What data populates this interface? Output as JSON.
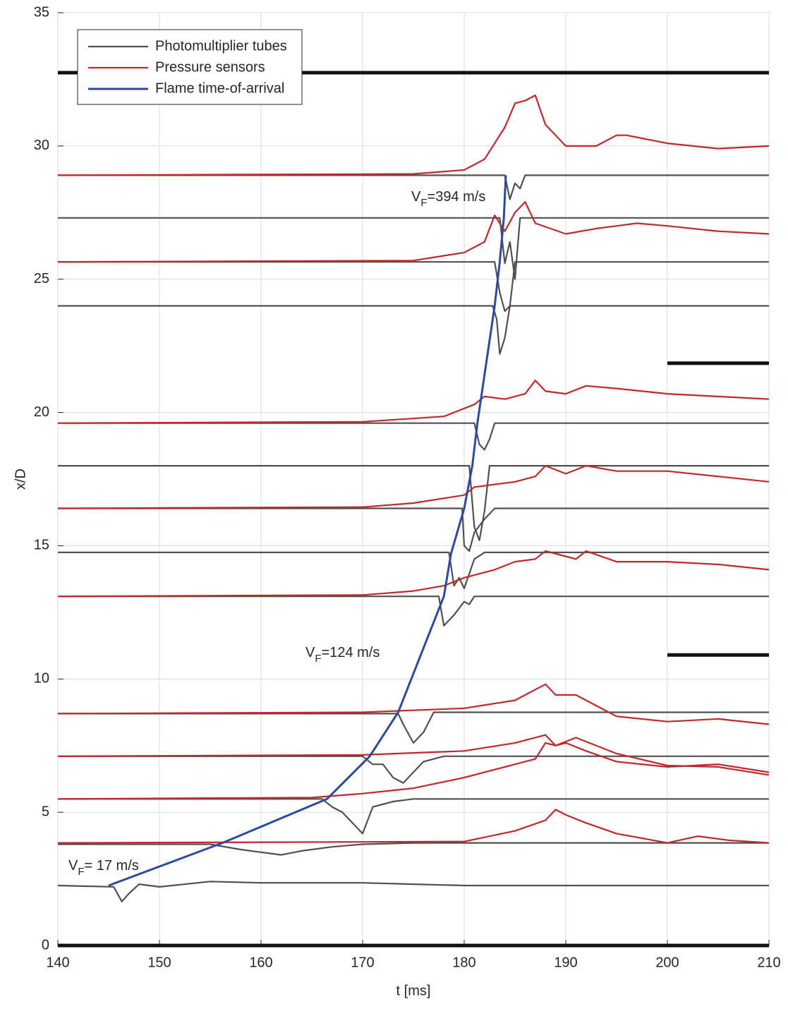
{
  "chart_data": {
    "type": "line",
    "xlabel": "t [ms]",
    "ylabel": "x/D",
    "xlim": [
      140,
      210
    ],
    "xticks": [
      140,
      150,
      160,
      170,
      180,
      190,
      200,
      210
    ],
    "ylim": [
      0,
      35
    ],
    "yticks": [
      0,
      5,
      10,
      15,
      20,
      25,
      30,
      35
    ],
    "grid": true,
    "legend": "upper left",
    "series": [
      {
        "name": "Photomultiplier tubes",
        "color": "#505050",
        "lines": [
          {
            "x": [
              140,
              145.5,
              146.3,
              147,
              148,
              150,
              155,
              160,
              170,
              175,
              180,
              210
            ],
            "values": [
              2.25,
              2.2,
              1.65,
              1.95,
              2.3,
              2.2,
              2.4,
              2.35,
              2.35,
              2.3,
              2.25,
              2.25
            ]
          },
          {
            "x": [
              140,
              155,
              158,
              160,
              162,
              164,
              167,
              170,
              175,
              210
            ],
            "values": [
              3.8,
              3.8,
              3.6,
              3.5,
              3.4,
              3.55,
              3.7,
              3.8,
              3.85,
              3.85
            ]
          },
          {
            "x": [
              140,
              166,
              167,
              168,
              169,
              170,
              171,
              173,
              175,
              210
            ],
            "values": [
              5.5,
              5.5,
              5.2,
              5.0,
              4.6,
              4.2,
              5.2,
              5.4,
              5.5,
              5.5
            ]
          },
          {
            "x": [
              140,
              170,
              171,
              172,
              173,
              174,
              175,
              176,
              178,
              210
            ],
            "values": [
              7.1,
              7.1,
              6.8,
              6.8,
              6.3,
              6.1,
              6.5,
              6.9,
              7.1,
              7.1
            ]
          },
          {
            "x": [
              140,
              173.5,
              174,
              175,
              176,
              177,
              178,
              210
            ],
            "values": [
              8.7,
              8.7,
              8.3,
              7.6,
              8.0,
              8.75,
              8.75,
              8.75
            ]
          },
          {
            "x": [
              140,
              177.5,
              178,
              179,
              180,
              180.5,
              181,
              210
            ],
            "values": [
              13.1,
              13.1,
              12.0,
              12.4,
              12.9,
              12.8,
              13.1,
              13.1
            ]
          },
          {
            "x": [
              140,
              178.5,
              179,
              179.5,
              180,
              181,
              182,
              210
            ],
            "values": [
              14.75,
              14.75,
              13.5,
              13.8,
              13.4,
              14.5,
              14.75,
              14.75
            ]
          },
          {
            "x": [
              140,
              179.8,
              180,
              180.5,
              181,
              182,
              182.5,
              183,
              210
            ],
            "values": [
              16.4,
              16.4,
              15.0,
              14.8,
              15.5,
              16.0,
              16.2,
              16.4,
              16.4
            ]
          },
          {
            "x": [
              140,
              180.5,
              181,
              181.5,
              182,
              182.5,
              210
            ],
            "values": [
              18,
              18,
              15.7,
              15.2,
              16.3,
              18,
              18
            ]
          },
          {
            "x": [
              140,
              181,
              181.5,
              182,
              182.5,
              183,
              210
            ],
            "values": [
              19.6,
              19.6,
              18.8,
              18.6,
              19.0,
              19.6,
              19.6
            ]
          },
          {
            "x": [
              140,
              182.8,
              183.2,
              183.5,
              184,
              184.5,
              210
            ],
            "values": [
              24,
              24,
              23.5,
              22.2,
              22.8,
              24,
              24
            ]
          },
          {
            "x": [
              140,
              183,
              183.5,
              184,
              184.5,
              185,
              210
            ],
            "values": [
              25.65,
              25.65,
              24.5,
              23.8,
              24.0,
              25.65,
              25.65
            ]
          },
          {
            "x": [
              140,
              183.5,
              184,
              184.5,
              185,
              185.5,
              210
            ],
            "values": [
              27.3,
              27.3,
              25.6,
              26.4,
              25.0,
              27.3,
              27.3
            ]
          },
          {
            "x": [
              140,
              184,
              184.5,
              185,
              185.5,
              186,
              210
            ],
            "values": [
              28.9,
              28.9,
              28.0,
              28.6,
              28.4,
              28.9,
              28.9
            ]
          }
        ]
      },
      {
        "name": "Pressure sensors",
        "color": "#c0282d",
        "lines": [
          {
            "x": [
              140,
              180,
              185,
              188,
              189,
              190,
              192,
              195,
              200,
              203,
              206,
              210
            ],
            "values": [
              3.85,
              3.9,
              4.3,
              4.7,
              5.1,
              4.9,
              4.6,
              4.2,
              3.85,
              4.1,
              3.95,
              3.85
            ]
          },
          {
            "x": [
              140,
              165,
              170,
              175,
              180,
              185,
              187,
              188,
              189,
              191,
              195,
              200,
              205,
              210
            ],
            "values": [
              5.5,
              5.55,
              5.7,
              5.9,
              6.3,
              6.8,
              7.0,
              7.6,
              7.5,
              7.8,
              7.2,
              6.75,
              6.7,
              6.4
            ]
          },
          {
            "x": [
              140,
              170,
              180,
              185,
              188,
              189,
              190,
              192,
              195,
              200,
              205,
              210
            ],
            "values": [
              7.1,
              7.15,
              7.3,
              7.6,
              7.9,
              7.5,
              7.6,
              7.3,
              6.9,
              6.7,
              6.8,
              6.5
            ]
          },
          {
            "x": [
              140,
              170,
              180,
              185,
              188,
              189,
              191,
              193,
              195,
              200,
              205,
              210
            ],
            "values": [
              8.7,
              8.75,
              8.9,
              9.2,
              9.8,
              9.4,
              9.4,
              9.0,
              8.6,
              8.4,
              8.5,
              8.3
            ]
          },
          {
            "x": [
              140,
              170,
              175,
              178,
              180,
              183,
              185,
              187,
              188,
              190,
              191,
              192,
              195,
              200,
              205,
              210
            ],
            "values": [
              13.1,
              13.15,
              13.3,
              13.5,
              13.8,
              14.1,
              14.4,
              14.5,
              14.8,
              14.6,
              14.5,
              14.8,
              14.4,
              14.4,
              14.3,
              14.1
            ]
          },
          {
            "x": [
              140,
              170,
              175,
              180,
              181,
              185,
              187,
              188,
              190,
              192,
              195,
              200,
              205,
              210
            ],
            "values": [
              16.4,
              16.45,
              16.6,
              16.9,
              17.2,
              17.4,
              17.6,
              18.0,
              17.7,
              18.0,
              17.8,
              17.8,
              17.6,
              17.4
            ]
          },
          {
            "x": [
              140,
              170,
              178,
              181,
              182,
              184,
              186,
              187,
              188,
              190,
              192,
              195,
              200,
              205,
              210
            ],
            "values": [
              19.6,
              19.65,
              19.85,
              20.3,
              20.6,
              20.5,
              20.7,
              21.2,
              20.8,
              20.7,
              21.0,
              20.9,
              20.7,
              20.6,
              20.5
            ]
          },
          {
            "x": [
              140,
              175,
              180,
              182,
              183,
              184,
              185,
              186,
              187,
              190,
              193,
              195,
              197,
              200,
              205,
              210
            ],
            "values": [
              25.65,
              25.7,
              26.0,
              26.4,
              27.4,
              26.8,
              27.5,
              27.9,
              27.1,
              26.7,
              26.9,
              27.0,
              27.1,
              27.0,
              26.8,
              26.7
            ]
          },
          {
            "x": [
              140,
              175,
              180,
              182,
              184,
              185,
              186,
              187,
              188,
              190,
              193,
              195,
              196,
              200,
              205,
              210
            ],
            "values": [
              28.9,
              28.95,
              29.1,
              29.5,
              30.7,
              31.6,
              31.7,
              31.9,
              30.8,
              30.0,
              30.0,
              30.4,
              30.4,
              30.1,
              29.9,
              30.0
            ]
          }
        ]
      },
      {
        "name": "Flame time-of-arrival",
        "color": "#2c4aa0",
        "lines": [
          {
            "x": [
              145,
              156.2,
              166.5,
              170.7,
              173.5,
              178,
              178.7,
              180,
              180.8,
              181.3,
              183,
              183.5,
              183.9,
              184.1
            ],
            "values": [
              2.25,
              3.85,
              5.5,
              7.1,
              8.75,
              13.1,
              14.7,
              16.4,
              18,
              19.6,
              24,
              25.65,
              27.3,
              28.9
            ]
          }
        ]
      }
    ],
    "obstacles": [
      {
        "x": [
          140,
          210
        ],
        "y": 32.75
      },
      {
        "x": [
          200,
          210
        ],
        "y": 21.85
      },
      {
        "x": [
          200,
          210
        ],
        "y": 10.9
      },
      {
        "x": [
          140,
          210
        ],
        "y": 0
      }
    ],
    "annotations": [
      {
        "text": "V",
        "sub": "F",
        "rest": "=394 m/s"
      },
      {
        "text": "V",
        "sub": "F",
        "rest": "=124 m/s"
      },
      {
        "text": "V",
        "sub": "F",
        "rest": "= 17 m/s"
      }
    ]
  }
}
